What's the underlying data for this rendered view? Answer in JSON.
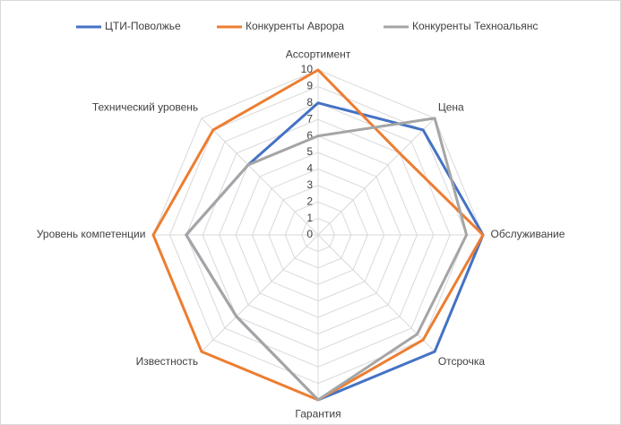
{
  "chart_data": {
    "type": "radar",
    "categories": [
      "Ассортимент",
      "Цена",
      "Обслуживание",
      "Отсрочка",
      "Гарантия",
      "Известность",
      "Уровень компетенции",
      "Технический уровень"
    ],
    "series": [
      {
        "name": "ЦТИ-Поволжье",
        "color": "#4472c4",
        "values": [
          8,
          9,
          10,
          10,
          10,
          7,
          8,
          6
        ]
      },
      {
        "name": "Конкуренты Аврора",
        "color": "#ed7d31",
        "values": [
          10,
          7,
          10,
          9,
          10,
          10,
          10,
          9
        ]
      },
      {
        "name": "Конкуренты Техноальянс",
        "color": "#a5a5a5",
        "values": [
          6,
          10,
          9,
          8.5,
          10,
          7,
          8,
          6
        ]
      }
    ],
    "rlim": [
      0,
      10
    ],
    "rticks": [
      0,
      1,
      2,
      3,
      4,
      5,
      6,
      7,
      8,
      9,
      10
    ],
    "grid": true,
    "legend": "top"
  }
}
